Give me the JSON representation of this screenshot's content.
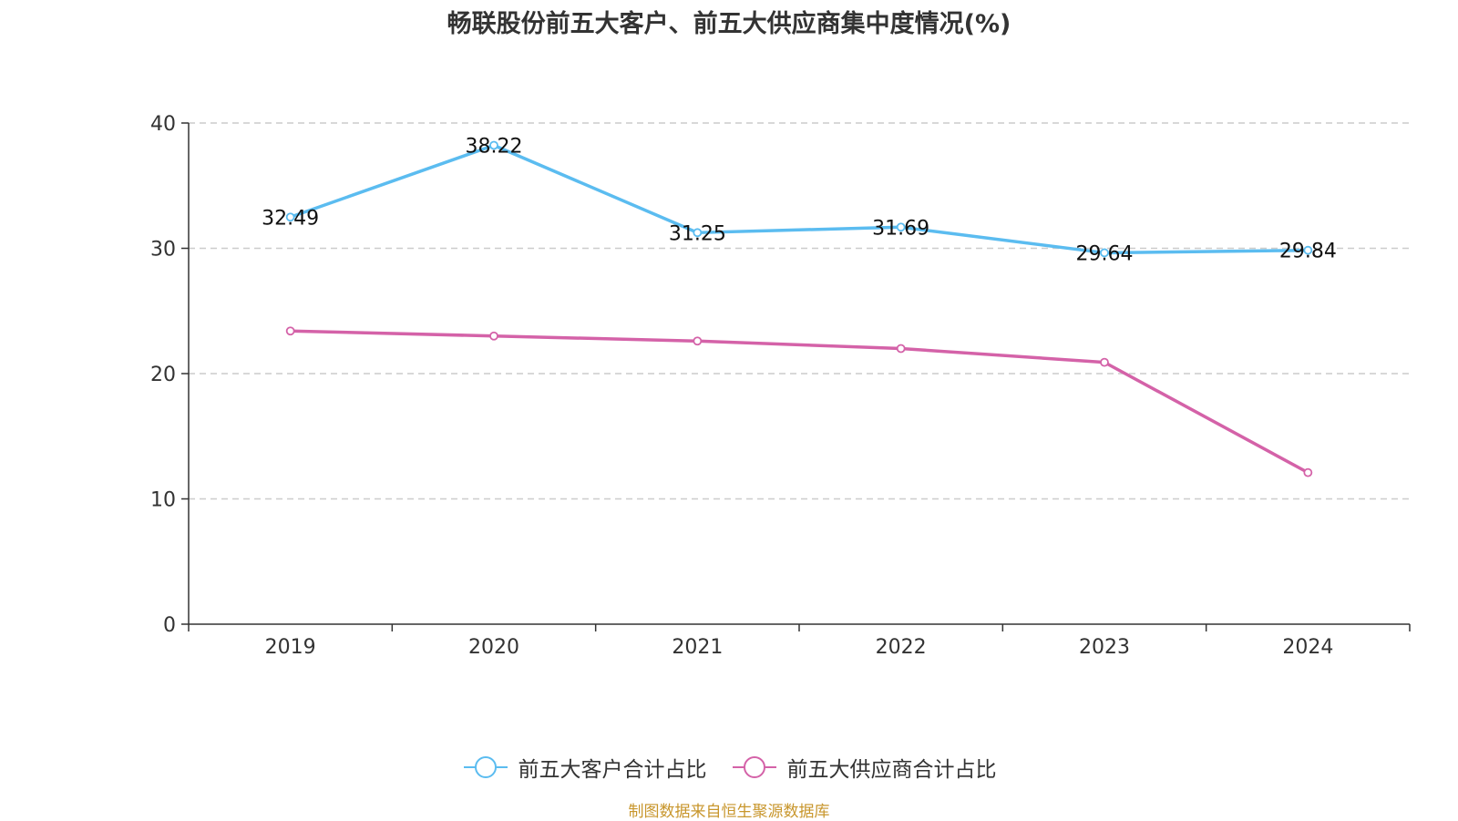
{
  "title": "畅联股份前五大客户、前五大供应商集中度情况(%)",
  "source": "制图数据来自恒生聚源数据库",
  "colors": {
    "customers": "#5bbcf0",
    "suppliers": "#d462a8",
    "grid": "#cccccc",
    "axis": "#333333"
  },
  "chart_data": {
    "type": "line",
    "title": "畅联股份前五大客户、前五大供应商集中度情况(%)",
    "x": [
      "2019",
      "2020",
      "2021",
      "2022",
      "2023",
      "2024"
    ],
    "ylim": [
      0,
      40
    ],
    "yticks": [
      0,
      10,
      20,
      30,
      40
    ],
    "grid": true,
    "legend_position": "bottom",
    "series": [
      {
        "name": "前五大客户合计占比",
        "values": [
          32.49,
          38.22,
          31.25,
          31.69,
          29.64,
          29.84
        ],
        "labels": [
          "32.49",
          "38.22",
          "31.25",
          "31.69",
          "29.64",
          "29.84"
        ],
        "show_labels": true
      },
      {
        "name": "前五大供应商合计占比",
        "values": [
          23.4,
          23.0,
          22.6,
          22.0,
          20.9,
          12.1
        ],
        "show_labels": false
      }
    ]
  }
}
